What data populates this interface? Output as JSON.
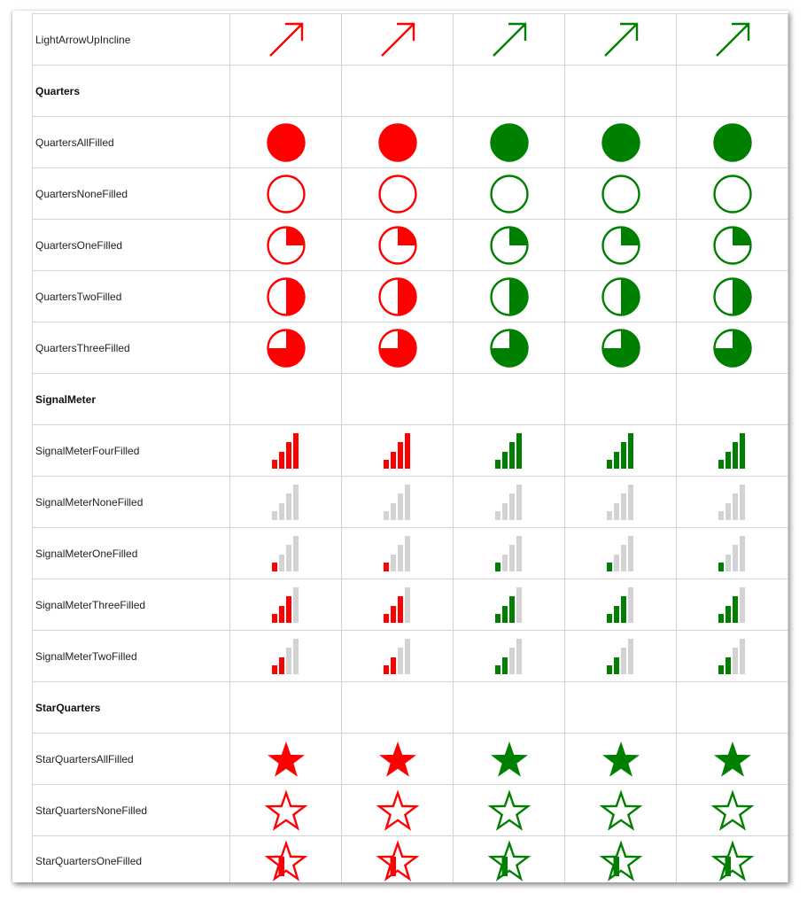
{
  "colors": {
    "red": "#ff0000",
    "green": "#008000",
    "gray": "#d3d3d3",
    "white": "#ffffff",
    "grid_border": "#d4d4d4"
  },
  "column_colors": [
    "red",
    "red",
    "green",
    "green",
    "green"
  ],
  "rows": [
    {
      "label": "LightArrowUpIncline",
      "icon": "arrow-up-incline-icon",
      "kind": "arrow"
    },
    {
      "label": "Quarters",
      "group": true
    },
    {
      "label": "QuartersAllFilled",
      "icon": "quarters-all-filled-icon",
      "kind": "quarter",
      "filled_quarters": 4
    },
    {
      "label": "QuartersNoneFilled",
      "icon": "quarters-none-filled-icon",
      "kind": "quarter",
      "filled_quarters": 0
    },
    {
      "label": "QuartersOneFilled",
      "icon": "quarters-one-filled-icon",
      "kind": "quarter",
      "filled_quarters": 1
    },
    {
      "label": "QuartersTwoFilled",
      "icon": "quarters-two-filled-icon",
      "kind": "quarter",
      "filled_quarters": 2
    },
    {
      "label": "QuartersThreeFilled",
      "icon": "quarters-three-filled-icon",
      "kind": "quarter",
      "filled_quarters": 3
    },
    {
      "label": "SignalMeter",
      "group": true
    },
    {
      "label": "SignalMeterFourFilled",
      "icon": "signal-meter-four-filled-icon",
      "kind": "signal",
      "filled_bars": 4
    },
    {
      "label": "SignalMeterNoneFilled",
      "icon": "signal-meter-none-filled-icon",
      "kind": "signal",
      "filled_bars": 0
    },
    {
      "label": "SignalMeterOneFilled",
      "icon": "signal-meter-one-filled-icon",
      "kind": "signal",
      "filled_bars": 1
    },
    {
      "label": "SignalMeterThreeFilled",
      "icon": "signal-meter-three-filled-icon",
      "kind": "signal",
      "filled_bars": 3
    },
    {
      "label": "SignalMeterTwoFilled",
      "icon": "signal-meter-two-filled-icon",
      "kind": "signal",
      "filled_bars": 2
    },
    {
      "label": "StarQuarters",
      "group": true
    },
    {
      "label": "StarQuartersAllFilled",
      "icon": "star-quarters-all-filled-icon",
      "kind": "star",
      "filled_quarters": 4
    },
    {
      "label": "StarQuartersNoneFilled",
      "icon": "star-quarters-none-filled-icon",
      "kind": "star",
      "filled_quarters": 0
    },
    {
      "label": "StarQuartersOneFilled",
      "icon": "star-quarters-one-filled-icon",
      "kind": "star",
      "filled_quarters": 1
    }
  ]
}
